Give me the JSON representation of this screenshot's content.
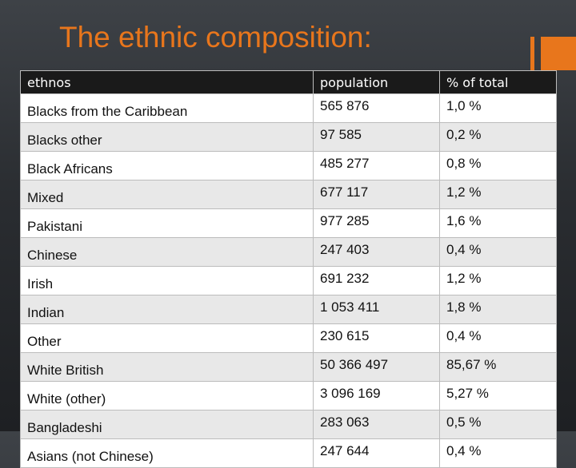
{
  "slide": {
    "title": "The ethnic composition:"
  },
  "colors": {
    "title": "#e8761c",
    "accent": "#e8761c",
    "header_bg": "#1a1a1a",
    "header_text": "#ffffff",
    "row_even_bg": "#ffffff",
    "row_odd_bg": "#e8e8e8",
    "cell_text": "#111111",
    "grid": "#bcbcbc"
  },
  "table": {
    "headers": [
      "ethnos",
      "population",
      "% of total"
    ],
    "rows": [
      [
        "Blacks from the Caribbean",
        "565 876",
        "1,0 %"
      ],
      [
        "Blacks other",
        "97 585",
        "0,2 %"
      ],
      [
        "Black Africans",
        "485 277",
        "0,8 %"
      ],
      [
        "Mixed",
        "677 117",
        "1,2 %"
      ],
      [
        "Pakistani",
        "977 285",
        "1,6 %"
      ],
      [
        "Chinese",
        "247 403",
        "0,4 %"
      ],
      [
        "Irish",
        "691 232",
        "1,2 %"
      ],
      [
        "Indian",
        "1 053 411",
        "1,8 %"
      ],
      [
        "Other",
        "230 615",
        "0,4 %"
      ],
      [
        "White British",
        "50 366 497",
        "85,67 %"
      ],
      [
        "White (other)",
        "3 096 169",
        "5,27 %"
      ],
      [
        "Bangladeshi",
        "283 063",
        "0,5 %"
      ],
      [
        "Asians (not Chinese)",
        "247 644",
        "0,4 %"
      ]
    ]
  }
}
